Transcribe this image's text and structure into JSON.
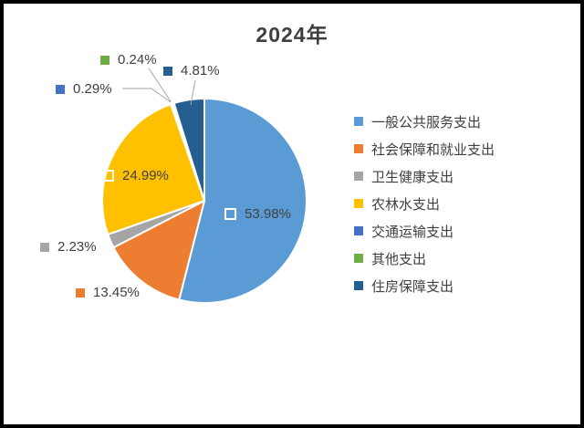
{
  "window": {
    "background": "#FFFFFF",
    "border_color": "#000000"
  },
  "chart_data": {
    "type": "pie",
    "title": "2024年",
    "legend_position": "right",
    "grid": false,
    "categories": [
      "一般公共服务支出",
      "社会保障和就业支出",
      "卫生健康支出",
      "农林水支出",
      "交通运输支出",
      "其他支出",
      "住房保障支出"
    ],
    "values": [
      53.98,
      13.45,
      2.23,
      24.99,
      0.29,
      0.24,
      4.81
    ],
    "labels": [
      "53.98%",
      "13.45%",
      "2.23%",
      "24.99%",
      "0.29%",
      "0.24%",
      "4.81%"
    ],
    "colors": [
      "#5B9BD5",
      "#ED7D31",
      "#A5A5A5",
      "#FFC000",
      "#4472C4",
      "#70AD47",
      "#255E91"
    ],
    "slice_border_color": "#FFFFFF",
    "leader_line_color": "#A6A6A6",
    "label_text_color": "#404040",
    "title_color": "#3F3F3F",
    "start_angle_deg": 0,
    "direction": "clockwise"
  }
}
